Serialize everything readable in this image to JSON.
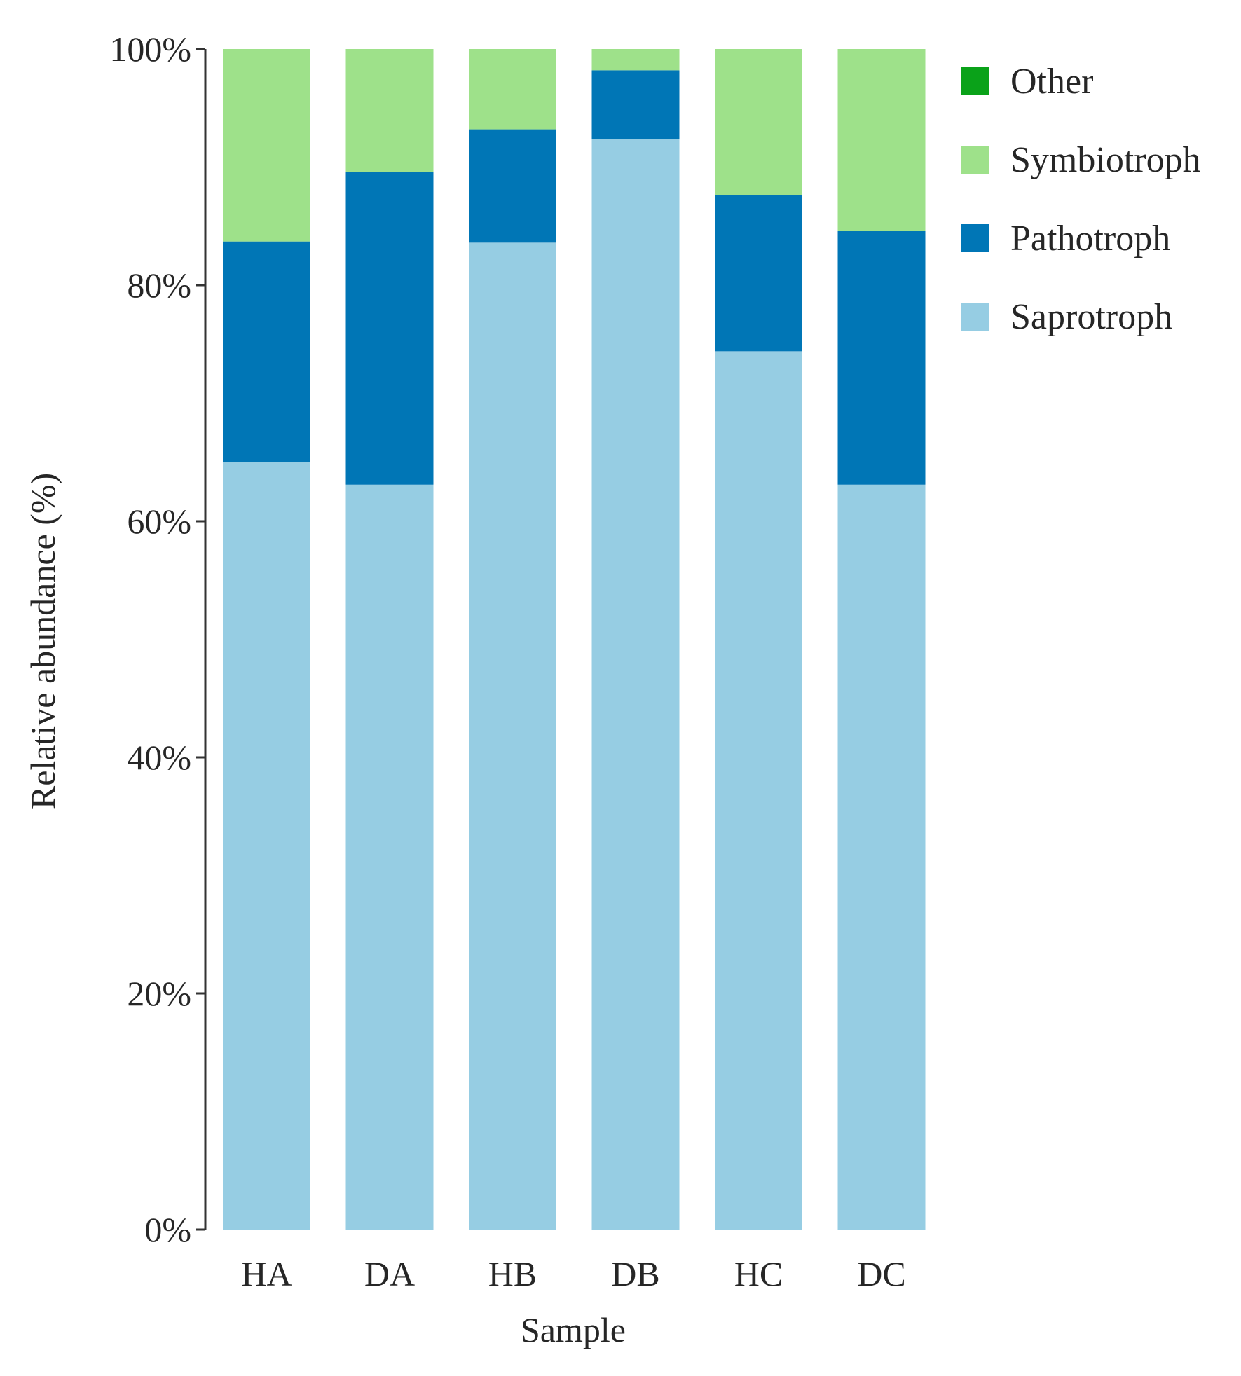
{
  "chart_data": {
    "type": "bar",
    "stacked": true,
    "title": "",
    "xlabel": "Sample",
    "ylabel": "Relative abundance (%)",
    "categories": [
      "HA",
      "DA",
      "HB",
      "DB",
      "HC",
      "DC"
    ],
    "ylim": [
      0,
      100
    ],
    "yticks": [
      0,
      20,
      40,
      60,
      80,
      100
    ],
    "ytick_labels": [
      "0%",
      "20%",
      "40%",
      "60%",
      "80%",
      "100%"
    ],
    "series": [
      {
        "name": "Saprotroph",
        "color": "#96cde3",
        "values": [
          65.0,
          63.1,
          83.6,
          92.4,
          74.4,
          63.1
        ]
      },
      {
        "name": "Pathotroph",
        "color": "#0076b6",
        "values": [
          18.7,
          26.5,
          9.6,
          5.8,
          13.2,
          21.5
        ]
      },
      {
        "name": "Symbiotroph",
        "color": "#9ee18a",
        "values": [
          16.3,
          10.4,
          6.8,
          1.8,
          12.4,
          15.4
        ]
      },
      {
        "name": "Other",
        "color": "#0aa219",
        "values": [
          0,
          0,
          0,
          0,
          0,
          0
        ]
      }
    ],
    "legend": {
      "position": "top-right",
      "order": [
        "Other",
        "Symbiotroph",
        "Pathotroph",
        "Saprotroph"
      ]
    },
    "grid": false
  }
}
